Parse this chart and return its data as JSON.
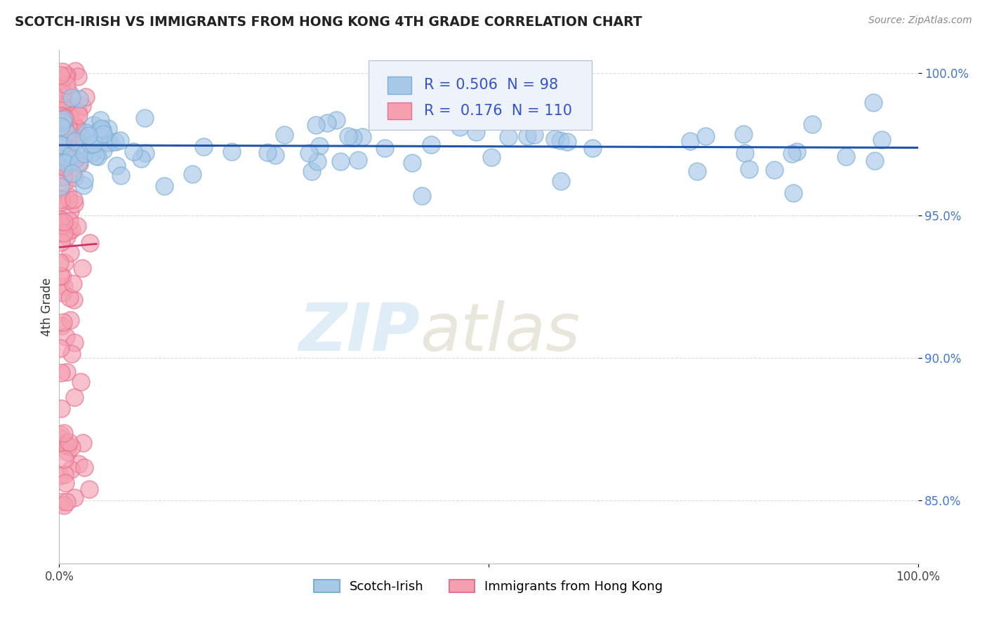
{
  "title": "SCOTCH-IRISH VS IMMIGRANTS FROM HONG KONG 4TH GRADE CORRELATION CHART",
  "ylabel": "4th Grade",
  "source": "Source: ZipAtlas.com",
  "series1_name": "Scotch-Irish",
  "series1_color": "#a8c8e8",
  "series1_edge_color": "#7bafd4",
  "series1_line_color": "#2255aa",
  "series1_R": 0.506,
  "series1_N": 98,
  "series2_name": "Immigrants from Hong Kong",
  "series2_color": "#f4a0b0",
  "series2_edge_color": "#e87090",
  "series2_line_color": "#cc3366",
  "series2_R": 0.176,
  "series2_N": 110,
  "xlim": [
    0.0,
    1.0
  ],
  "ylim": [
    0.828,
    1.008
  ],
  "yticks": [
    0.85,
    0.9,
    0.95,
    1.0
  ],
  "ytick_labels": [
    "85.0%",
    "90.0%",
    "95.0%",
    "100.0%"
  ],
  "watermark_zip": "ZIP",
  "watermark_atlas": "atlas",
  "background_color": "#ffffff",
  "legend_R_color": "#3355cc",
  "grid_color": "#cccccc",
  "legend_bg_color": "#eef2fa"
}
